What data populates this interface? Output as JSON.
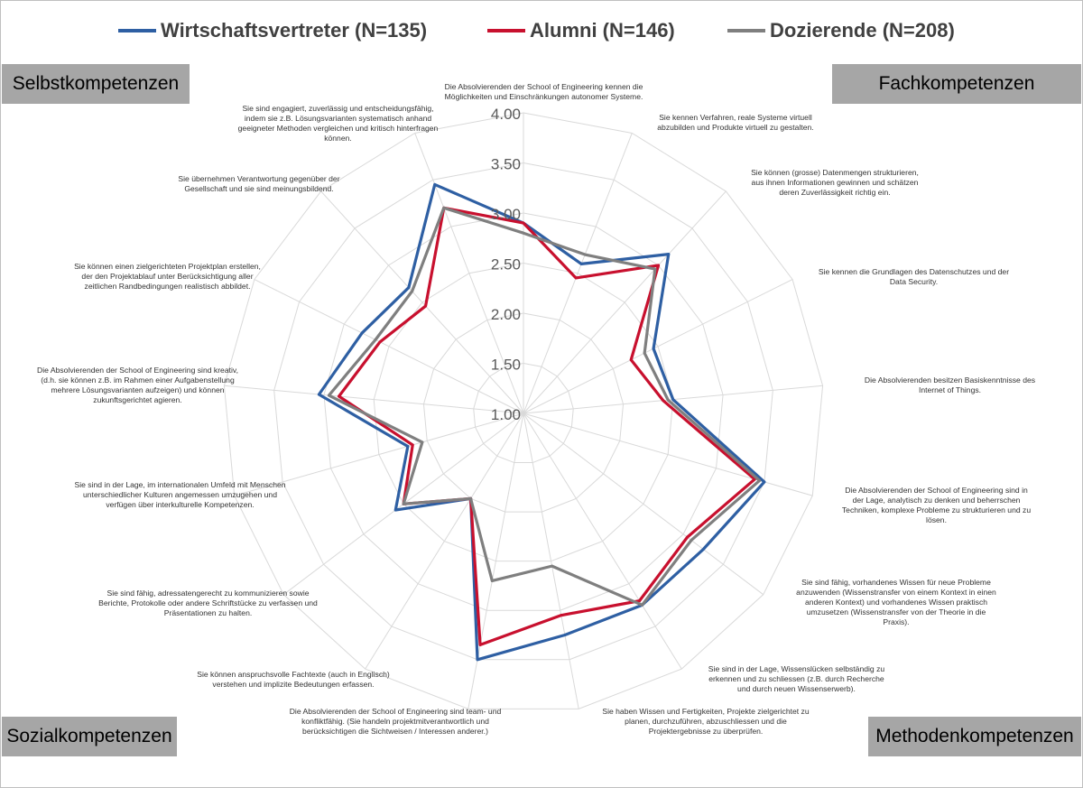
{
  "legend": [
    {
      "label": "Wirtschaftsvertreter (N=135)",
      "color": "#2e5fa3"
    },
    {
      "label": "Alumni (N=146)",
      "color": "#c8102e"
    },
    {
      "label": "Dozierende (N=208)",
      "color": "#7f7f7f"
    }
  ],
  "corners": {
    "top_left": "Selbstkompetenzen",
    "top_right": "Fachkompetenzen",
    "bottom_left": "Sozialkompetenzen",
    "bottom_right": "Methodenkompetenzen"
  },
  "chart_data": {
    "type": "radar",
    "r_range": [
      1.0,
      4.0
    ],
    "tick_labels": [
      "1.00",
      "1.50",
      "2.00",
      "2.50",
      "3.00",
      "3.50",
      "4.00"
    ],
    "grid": true,
    "legend_position": "top",
    "categories": [
      "Die Absolvierenden der School of Engineering kennen die Möglichkeiten und Einschränkungen autonomer Systeme.",
      "Sie kennen Verfahren, reale Systeme virtuell abzubilden und Produkte virtuell zu gestalten.",
      "Sie können (grosse) Datenmengen strukturieren, aus ihnen Informationen gewinnen und schätzen deren Zuverlässigkeit richtig ein.",
      "Sie kennen die Grundlagen des Datenschutzes und der Data Security.",
      "Die Absolvierenden besitzen Basiskenntnisse des Internet of Things.",
      "Die Absolvierenden der School of Engineering sind in der Lage, analytisch zu denken und beherrschen Techniken, komplexe Probleme zu strukturieren und zu lösen.",
      "Sie sind fähig, vorhandenes Wissen für neue Probleme anzuwenden (Wissenstransfer von einem Kontext in einen anderen Kontext) und vorhandenes Wissen praktisch umzusetzen (Wissenstransfer von der Theorie in die Praxis).",
      "Sie sind in der Lage, Wissenslücken selbständig zu erkennen und zu schliessen (z.B. durch Recherche und durch neuen Wissenserwerb).",
      "Sie haben Wissen und Fertigkeiten, Projekte zielgerichtet zu planen, durchzuführen, abzuschliessen und die Projektergebnisse zu überprüfen.",
      "Die Absolvierenden der School of Engineering sind team- und konfliktfähig. (Sie handeln projektmitverantwortlich und berücksichtigen die Sichtweisen / Interessen anderer.)",
      "Sie können anspruchsvolle Fachtexte (auch in Englisch) verstehen und implizite Bedeutungen erfassen.",
      "Sie sind fähig, adressatengerecht zu kommunizieren sowie Berichte, Protokolle oder andere Schriftstücke zu verfassen und Präsentationen zu halten.",
      "Sie sind in der Lage, im internationalen Umfeld mit Menschen unterschiedlicher Kulturen angemessen umzugehen und verfügen über interkulturelle Kompetenzen.",
      "Die Absolvierenden der School of Engineering sind kreativ, (d.h. sie können z.B. im Rahmen einer Aufgabenstellung mehrere Lösungsvarianten aufzeigen) und können zukunftsgerichtet agieren.",
      "Sie können einen zielgerichteten Projektplan erstellen, der den Projektablauf unter Berücksichtigung aller zeitlichen Randbedingungen realistisch abbildet.",
      "Sie übernehmen Verantwortung gegenüber der Gesellschaft und sie sind meinungsbildend.",
      "Sie sind engagiert, zuverlässig und entscheidungsfähig, indem sie z.B. Lösungsvarianten systematisch anhand geeigneter Methoden vergleichen und kritisch hinterfragen können."
    ],
    "series": [
      {
        "name": "Wirtschaftsvertreter (N=135)",
        "color": "#2e5fa3",
        "values": [
          2.9,
          2.6,
          3.15,
          2.45,
          2.5,
          3.5,
          3.25,
          3.25,
          3.25,
          3.5,
          2.0,
          2.6,
          2.2,
          3.05,
          2.8,
          2.7,
          3.45
        ]
      },
      {
        "name": "Alumni (N=146)",
        "color": "#c8102e",
        "values": [
          2.9,
          2.45,
          3.0,
          2.2,
          2.4,
          3.4,
          3.05,
          3.2,
          3.05,
          3.35,
          2.0,
          2.5,
          2.15,
          2.85,
          2.6,
          2.45,
          3.2
        ]
      },
      {
        "name": "Dozierende (N=208)",
        "color": "#7f7f7f",
        "values": [
          2.8,
          2.7,
          2.95,
          2.35,
          2.45,
          3.45,
          3.1,
          3.25,
          2.55,
          2.7,
          2.0,
          2.5,
          2.05,
          2.95,
          2.65,
          2.65,
          3.2
        ]
      }
    ]
  }
}
